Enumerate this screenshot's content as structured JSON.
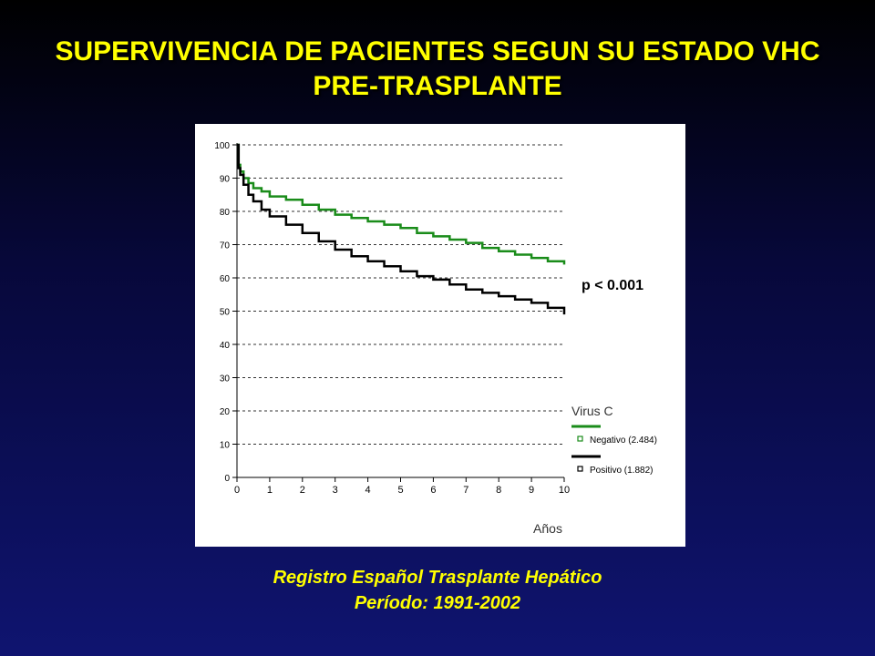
{
  "title": {
    "line1": "SUPERVIVENCIA DE PACIENTES SEGUN SU ESTADO VHC",
    "line2": "PRE-TRASPLANTE"
  },
  "footer": {
    "line1": "Registro Español Trasplante Hepático",
    "line2": "Período: 1991-2002"
  },
  "annotation": "p < 0.001",
  "chart_data": {
    "type": "line",
    "xlabel": "Años",
    "ylabel": "",
    "xlim": [
      0,
      10
    ],
    "ylim": [
      0,
      100
    ],
    "xticks": [
      "0",
      "1",
      "2",
      "3",
      "4",
      "5",
      "6",
      "7",
      "8",
      "9",
      "10"
    ],
    "yticks": [
      "0",
      "10",
      "20",
      "30",
      "40",
      "50",
      "60",
      "70",
      "80",
      "90",
      "100"
    ],
    "grid": "horizontal-dashed",
    "legend": {
      "title": "Virus C",
      "placement": "bottom-right",
      "entries": [
        "Negativo (2.484)",
        "Positivo (1.882)"
      ]
    },
    "series": [
      {
        "name": "Negativo (2.484)",
        "color": "#1a8c1a",
        "x": [
          0,
          0.05,
          0.1,
          0.2,
          0.35,
          0.5,
          0.75,
          1,
          1.5,
          2,
          2.5,
          3,
          3.5,
          4,
          4.5,
          5,
          5.5,
          6,
          6.5,
          7,
          7.5,
          8,
          8.5,
          9,
          9.5,
          10
        ],
        "values": [
          100,
          94,
          92,
          90,
          88.5,
          87,
          86,
          84.5,
          83.5,
          82,
          80.5,
          79,
          78,
          77,
          76,
          75,
          73.5,
          72.5,
          71.5,
          70.5,
          69,
          68,
          67,
          66,
          65,
          64
        ]
      },
      {
        "name": "Positivo (1.882)",
        "color": "#000000",
        "x": [
          0,
          0.05,
          0.1,
          0.2,
          0.35,
          0.5,
          0.75,
          1,
          1.5,
          2,
          2.5,
          3,
          3.5,
          4,
          4.5,
          5,
          5.5,
          6,
          6.5,
          7,
          7.5,
          8,
          8.5,
          9,
          9.5,
          10
        ],
        "values": [
          100,
          93,
          91,
          88,
          85,
          83,
          80.5,
          78.5,
          76,
          73.5,
          71,
          68.5,
          66.5,
          65,
          63.5,
          62,
          60.5,
          59.5,
          58,
          56.5,
          55.5,
          54.5,
          53.5,
          52.5,
          51,
          49
        ]
      }
    ]
  }
}
